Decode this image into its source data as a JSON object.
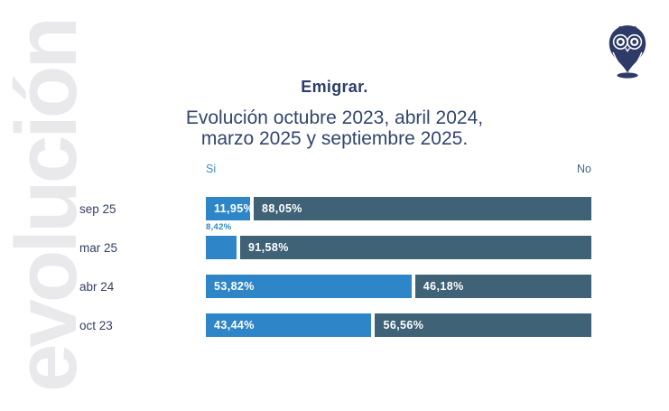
{
  "watermark": "evolución",
  "logo": {
    "name": "owl-logo",
    "color": "#2E3A68"
  },
  "chart_data": {
    "type": "bar",
    "orientation": "horizontal",
    "stacked": true,
    "title": "Emigrar.",
    "subtitle_lines": [
      "Evolución octubre 2023, abril 2024,",
      "marzo 2025 y septiembre 2025."
    ],
    "axis_headers": {
      "left": "Si",
      "right": "No"
    },
    "categories": [
      "sep 25",
      "mar 25",
      "abr 24",
      "oct 23"
    ],
    "series": [
      {
        "name": "Si",
        "color": "#2E86C8",
        "values": [
          11.95,
          8.42,
          53.82,
          43.44
        ],
        "labels": [
          "11,95%",
          "8,42%",
          "53,82%",
          "43,44%"
        ]
      },
      {
        "name": "No",
        "color": "#3F6277",
        "values": [
          88.05,
          91.58,
          46.18,
          56.56
        ],
        "labels": [
          "88,05%",
          "91,58%",
          "46,18%",
          "56,56%"
        ]
      }
    ],
    "xlim": [
      0,
      100
    ],
    "value_label_outside_threshold": 10,
    "legend_position": "top",
    "grid": false
  },
  "colors": {
    "title": "#2B3D6B",
    "subtitle": "#31456E",
    "category_label": "#333F63",
    "si_header": "#3E8CCB",
    "no_header": "#47687E",
    "watermark": "#E9E9EC",
    "bar_value_text": "#FFFFFF",
    "logo_navy": "#2E3A68"
  }
}
